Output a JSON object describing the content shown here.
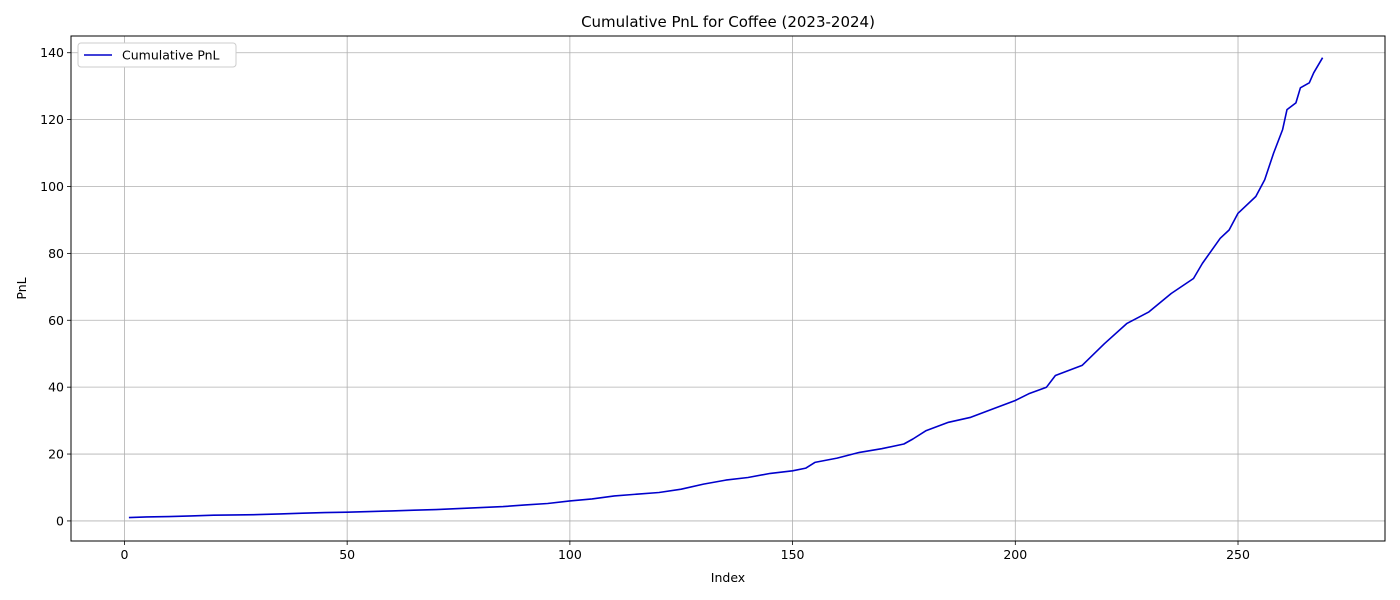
{
  "chart_data": {
    "type": "line",
    "title": "Cumulative PnL for Coffee (2023-2024)",
    "xlabel": "Index",
    "ylabel": "PnL",
    "xlim": [
      -12,
      283
    ],
    "ylim": [
      -6,
      145
    ],
    "x_ticks": [
      0,
      50,
      100,
      150,
      200,
      250
    ],
    "y_ticks": [
      0,
      20,
      40,
      60,
      80,
      100,
      120,
      140
    ],
    "grid": true,
    "legend_position": "top-left",
    "series": [
      {
        "name": "Cumulative PnL",
        "color": "#0000cc",
        "x": [
          1,
          5,
          10,
          15,
          20,
          25,
          30,
          35,
          40,
          45,
          50,
          55,
          60,
          65,
          70,
          75,
          80,
          85,
          90,
          95,
          100,
          105,
          110,
          115,
          120,
          125,
          130,
          135,
          140,
          145,
          150,
          153,
          155,
          160,
          165,
          170,
          175,
          177,
          180,
          185,
          190,
          195,
          200,
          203,
          207,
          209,
          215,
          220,
          225,
          230,
          235,
          240,
          242,
          246,
          248,
          250,
          254,
          256,
          258,
          260,
          261,
          263,
          264,
          266,
          267,
          269
        ],
        "y": [
          1.0,
          1.2,
          1.3,
          1.5,
          1.7,
          1.8,
          1.9,
          2.1,
          2.3,
          2.5,
          2.6,
          2.8,
          3.0,
          3.2,
          3.4,
          3.7,
          4.0,
          4.3,
          4.8,
          5.2,
          6.0,
          6.6,
          7.5,
          8.0,
          8.5,
          9.5,
          11.0,
          12.2,
          13.0,
          14.2,
          15.0,
          15.8,
          17.5,
          18.8,
          20.5,
          21.6,
          23.0,
          24.5,
          27.0,
          29.5,
          31.0,
          33.5,
          36.0,
          38.0,
          40.0,
          43.5,
          46.5,
          53.0,
          59.0,
          62.5,
          68.0,
          72.5,
          77.0,
          84.5,
          87.0,
          92.0,
          97.0,
          102.0,
          110.0,
          117.0,
          123.0,
          125.0,
          129.5,
          131.0,
          134.0,
          138.5
        ]
      }
    ]
  }
}
